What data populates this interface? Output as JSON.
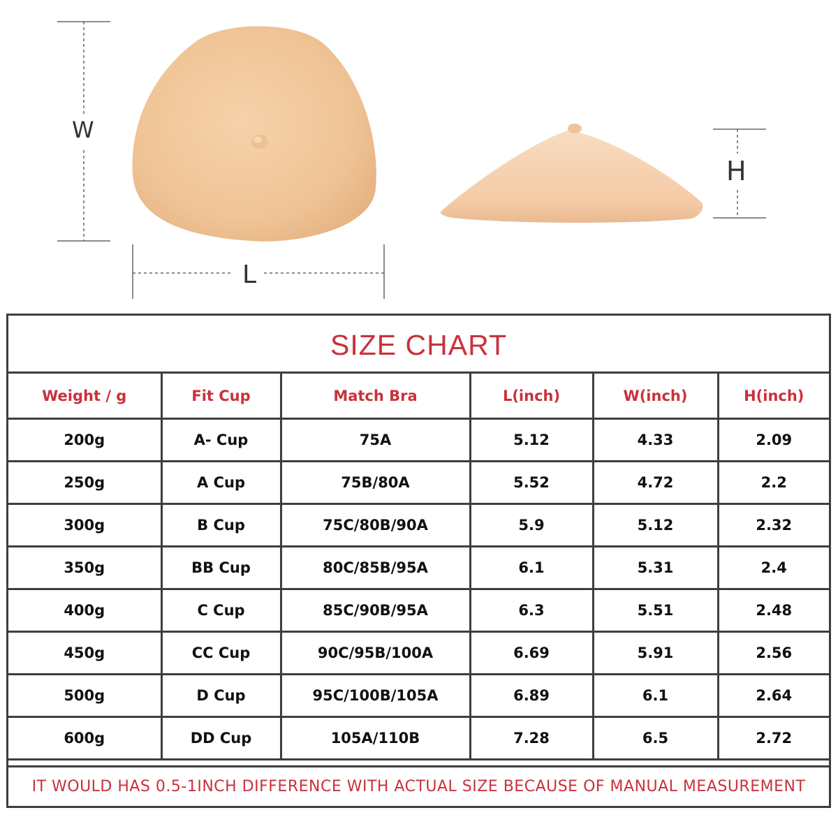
{
  "dimensions": {
    "width_label": "W",
    "length_label": "L",
    "height_label": "H"
  },
  "colors": {
    "accent": "#c8323c",
    "border": "#3e3e3e",
    "skin": "#f2c89e"
  },
  "size_chart": {
    "title": "SIZE CHART",
    "columns": [
      "Weight / g",
      "Fit Cup",
      "Match Bra",
      "L(inch)",
      "W(inch)",
      "H(inch)"
    ],
    "rows": [
      [
        "200g",
        "A- Cup",
        "75A",
        "5.12",
        "4.33",
        "2.09"
      ],
      [
        "250g",
        "A Cup",
        "75B/80A",
        "5.52",
        "4.72",
        "2.2"
      ],
      [
        "300g",
        "B Cup",
        "75C/80B/90A",
        "5.9",
        "5.12",
        "2.32"
      ],
      [
        "350g",
        "BB Cup",
        "80C/85B/95A",
        "6.1",
        "5.31",
        "2.4"
      ],
      [
        "400g",
        "C Cup",
        "85C/90B/95A",
        "6.3",
        "5.51",
        "2.48"
      ],
      [
        "450g",
        "CC Cup",
        "90C/95B/100A",
        "6.69",
        "5.91",
        "2.56"
      ],
      [
        "500g",
        "D Cup",
        "95C/100B/105A",
        "6.89",
        "6.1",
        "2.64"
      ],
      [
        "600g",
        "DD Cup",
        "105A/110B",
        "7.28",
        "6.5",
        "2.72"
      ]
    ],
    "footnote": "IT WOULD HAS 0.5-1INCH DIFFERENCE WITH ACTUAL SIZE BECAUSE OF MANUAL MEASUREMENT"
  }
}
